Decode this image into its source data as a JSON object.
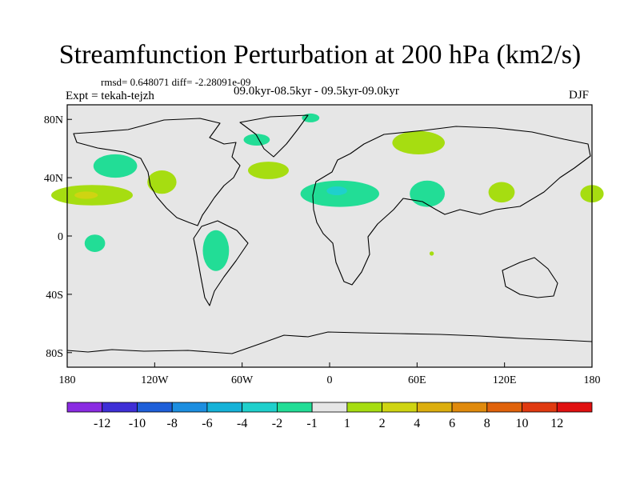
{
  "figure": {
    "title": "Streamfunction Perturbation at 200 hPa (km2/s)",
    "stats": "rmsd= 0.648071 diff= -2.28091e-09",
    "experiment": "Expt = tekah-tejzh",
    "period": "09.0kyr-08.5kyr - 09.5kyr-09.0kyr",
    "season": "DJF"
  },
  "chart_data": {
    "type": "heatmap",
    "projection": "cylindrical-equidistant",
    "title": "Streamfunction Perturbation at 200 hPa (km2/s)",
    "variable": "streamfunction perturbation",
    "units": "km2/s",
    "xlim": [
      -180,
      180
    ],
    "ylim": [
      -90,
      90
    ],
    "x_ticks": [
      {
        "value": -180,
        "label": "180"
      },
      {
        "value": -120,
        "label": "120W"
      },
      {
        "value": -60,
        "label": "60W"
      },
      {
        "value": 0,
        "label": "0"
      },
      {
        "value": 60,
        "label": "60E"
      },
      {
        "value": 120,
        "label": "120E"
      },
      {
        "value": 180,
        "label": "180"
      }
    ],
    "y_ticks": [
      {
        "value": 80,
        "label": "80N"
      },
      {
        "value": 40,
        "label": "40N"
      },
      {
        "value": 0,
        "label": "0"
      },
      {
        "value": -40,
        "label": "40S"
      },
      {
        "value": -80,
        "label": "80S"
      }
    ],
    "levels": [
      -12,
      -10,
      -8,
      -6,
      -4,
      -2,
      -1,
      1,
      2,
      4,
      6,
      8,
      10,
      12
    ],
    "colors": [
      "#8a2be2",
      "#3f2fd6",
      "#1e5fd9",
      "#1c8ee0",
      "#15b2d8",
      "#1fd0cc",
      "#22dd96",
      "#e6e6e6",
      "#a6dd11",
      "#cfd412",
      "#dcae0e",
      "#e08a0c",
      "#e0620a",
      "#e03a10",
      "#e01010"
    ],
    "background_color": "#e6e6e6",
    "coast_color": "#000000",
    "anomalies": [
      {
        "name": "North Pacific negative",
        "lon": -147,
        "lat": 48,
        "rlon": 15,
        "rlat": 8,
        "value": -1.5
      },
      {
        "name": "Subtropical Pacific positive",
        "lon": -163,
        "lat": 28,
        "rlon": 28,
        "rlat": 7,
        "value": 1.5
      },
      {
        "name": "Subtropical Pacific positive core",
        "lon": -167,
        "lat": 28,
        "rlon": 8,
        "rlat": 2.5,
        "value": 2.5
      },
      {
        "name": "Western North America positive",
        "lon": -115,
        "lat": 37,
        "rlon": 10,
        "rlat": 8,
        "value": 1.5
      },
      {
        "name": "Arctic Canada negative",
        "lon": -13,
        "lat": 81,
        "rlon": 6,
        "rlat": 3,
        "value": -1.5
      },
      {
        "name": "Greenland negative",
        "lon": -50,
        "lat": 66,
        "rlon": 9,
        "rlat": 4,
        "value": -1.5
      },
      {
        "name": "North Atlantic positive",
        "lon": -42,
        "lat": 45,
        "rlon": 14,
        "rlat": 6,
        "value": 1.5
      },
      {
        "name": "Mediterranean-Sahara negative",
        "lon": 7,
        "lat": 29,
        "rlon": 27,
        "rlat": 9,
        "value": -1.5
      },
      {
        "name": "Mediterranean core",
        "lon": 5,
        "lat": 31,
        "rlon": 7,
        "rlat": 3,
        "value": -2.5
      },
      {
        "name": "Siberia positive",
        "lon": 61,
        "lat": 64,
        "rlon": 18,
        "rlat": 8,
        "value": 1.5
      },
      {
        "name": "South Asia negative",
        "lon": 67,
        "lat": 29,
        "rlon": 12,
        "rlat": 9,
        "value": -1.5
      },
      {
        "name": "East Asia positive",
        "lon": 118,
        "lat": 30,
        "rlon": 9,
        "rlat": 7,
        "value": 1.5
      },
      {
        "name": "Dateline positive",
        "lon": 180,
        "lat": 29,
        "rlon": 8,
        "rlat": 6,
        "value": 1.5
      },
      {
        "name": "Tropical Pacific negative",
        "lon": -161,
        "lat": -5,
        "rlon": 7,
        "rlat": 6,
        "value": -1.5
      },
      {
        "name": "South America negative",
        "lon": -78,
        "lat": -10,
        "rlon": 9,
        "rlat": 14,
        "value": -1.5
      },
      {
        "name": "Southern Africa positive",
        "lon": 70,
        "lat": -12,
        "rlon": 1.5,
        "rlat": 1.5,
        "value": 1.5
      }
    ]
  }
}
